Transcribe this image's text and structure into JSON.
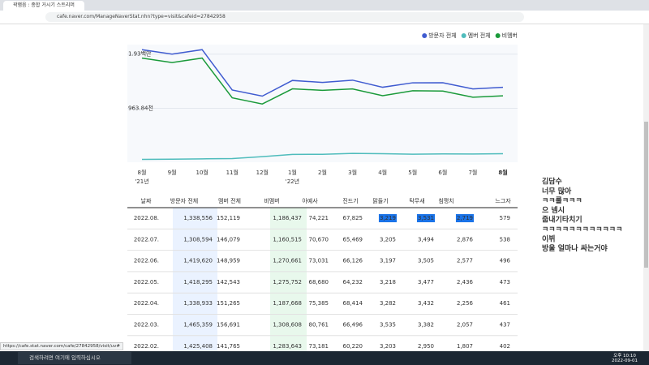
{
  "browser": {
    "tab_title": "곽햄음 : 종합 거시기 스트리머",
    "url": "cafe.naver.com/ManageNaverStat.nhn?type=visit&cafeid=27842958",
    "status_url": "https://cafe.stat.naver.com/cafe/27842958/visit/uv#"
  },
  "chart_data": {
    "type": "line",
    "categories": [
      "8월",
      "9월",
      "10월",
      "11월",
      "12월",
      "1월",
      "2월",
      "3월",
      "4월",
      "5월",
      "6월",
      "7월",
      "8월"
    ],
    "category_years": [
      "'21년",
      null,
      null,
      null,
      null,
      "'22년",
      null,
      null,
      null,
      null,
      null,
      null,
      null
    ],
    "series": [
      {
        "name": "방문자 전체",
        "color": "#3f5bd0",
        "values": [
          2010000,
          1930000,
          2010000,
          1290000,
          1180000,
          1460000,
          1425408,
          1465359,
          1338933,
          1418295,
          1419620,
          1308594,
          1338556
        ]
      },
      {
        "name": "멤버 전체",
        "color": "#4fbcbc",
        "values": [
          50000,
          55000,
          60000,
          65000,
          100000,
          140000,
          141765,
          156691,
          151265,
          142543,
          148959,
          146079,
          152119
        ]
      },
      {
        "name": "비멤버",
        "color": "#1a9a3a",
        "values": [
          1860000,
          1780000,
          1860000,
          1150000,
          1040000,
          1310000,
          1283643,
          1308608,
          1187668,
          1275752,
          1270661,
          1160515,
          1186437
        ]
      }
    ],
    "ylim": [
      0,
      2100000
    ],
    "yticks": [
      {
        "value": 963840,
        "label": "963.84천"
      },
      {
        "value": 1930000,
        "label": "1.93백만"
      }
    ],
    "grid": true,
    "legend": "top-right"
  },
  "table": {
    "headers": [
      "날짜",
      "방문자 전체",
      "멤버 전체",
      "비멤버",
      "아예사",
      "진드기",
      "맑들기",
      "탁무새",
      "침맹치",
      "느그자"
    ],
    "rows": [
      [
        "2022.08.",
        "1,338,556",
        "152,119",
        "1,186,437",
        "74,221",
        "67,825",
        "3,219",
        "3,531",
        "2,719",
        "579"
      ],
      [
        "2022.07.",
        "1,308,594",
        "146,079",
        "1,160,515",
        "70,670",
        "65,469",
        "3,205",
        "3,494",
        "2,876",
        "538"
      ],
      [
        "2022.06.",
        "1,419,620",
        "148,959",
        "1,270,661",
        "73,031",
        "66,126",
        "3,197",
        "3,505",
        "2,577",
        "496"
      ],
      [
        "2022.05.",
        "1,418,295",
        "142,543",
        "1,275,752",
        "68,680",
        "64,232",
        "3,218",
        "3,477",
        "2,436",
        "473"
      ],
      [
        "2022.04.",
        "1,338,933",
        "151,265",
        "1,187,668",
        "75,385",
        "68,414",
        "3,282",
        "3,432",
        "2,256",
        "461"
      ],
      [
        "2022.03.",
        "1,465,359",
        "156,691",
        "1,308,608",
        "80,761",
        "66,496",
        "3,535",
        "3,382",
        "2,057",
        "437"
      ],
      [
        "2022.02.",
        "1,425,408",
        "141,765",
        "1,283,643",
        "73,181",
        "60,220",
        "3,203",
        "2,950",
        "1,807",
        "402"
      ]
    ],
    "selection": [
      [
        0,
        6
      ],
      [
        0,
        7
      ],
      [
        0,
        8
      ]
    ]
  },
  "chat": [
    {
      "text": "김담수",
      "color": "#333333"
    },
    {
      "text": "너무 많아",
      "color": "#9a9a9a"
    },
    {
      "text": "ㅋㅋ룰ㅋㅋㅋ",
      "color": "#1a9a3a"
    },
    {
      "text": "으 넴시",
      "color": "#9a9a9a"
    },
    {
      "text": "줍내기타치기",
      "color": "#a07a10"
    },
    {
      "text": "ㅋㅋㅋㅋㅋㅋㅋㅋㅋㅋㅋㅋ",
      "color": "#777777"
    },
    {
      "text": "이뷔",
      "color": "#d0281e"
    },
    {
      "text": "방울 얼마나 싸는거야",
      "color": "#9a9a9a"
    }
  ],
  "taskbar": {
    "search": "검색하려면 여기에 입력하십시오",
    "time": "오후 10:10",
    "date": "2022-09-01"
  }
}
